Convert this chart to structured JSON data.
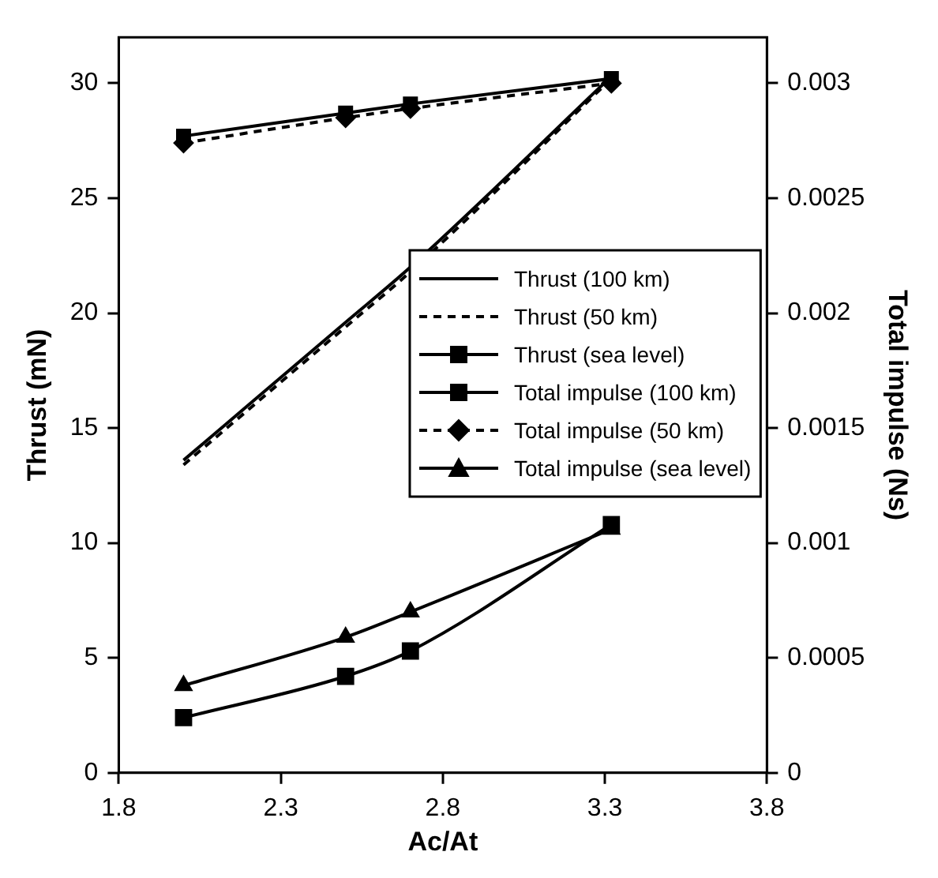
{
  "chart_data": {
    "type": "line",
    "xlabel": "Ac/At",
    "ylabel": "Thrust (mN)",
    "y2label": "Total impulse (Ns)",
    "x": [
      2.0,
      2.5,
      2.7,
      3.32
    ],
    "xlim": [
      1.8,
      3.8
    ],
    "xticks": [
      1.8,
      2.3,
      2.8,
      3.3,
      3.8
    ],
    "ylim": [
      0,
      32
    ],
    "yticks": [
      0,
      5,
      10,
      15,
      20,
      25,
      30
    ],
    "y2lim": [
      0,
      0.0032
    ],
    "y2ticks": [
      0,
      0.0005,
      0.001,
      0.0015,
      0.002,
      0.0025,
      0.003
    ],
    "grid": false,
    "legend": "right",
    "series": [
      {
        "name": "Thrust (100 km)",
        "color": "#000000",
        "values": [
          13.6,
          19.6,
          22.0,
          30.3
        ],
        "marker": "none",
        "line_style": "solid"
      },
      {
        "name": "Thrust (50 km)",
        "color": "#000000",
        "values": [
          13.4,
          19.4,
          21.8,
          30.2
        ],
        "marker": "none",
        "line_style": "dashed"
      },
      {
        "name": "Thrust (sea level)",
        "color": "#000000",
        "values": [
          2.4,
          4.2,
          5.3,
          10.8
        ],
        "marker": "square",
        "line_style": "solid"
      },
      {
        "name": "Total impulse (100 km)",
        "color": "#000000",
        "values": [
          0.00277,
          0.00287,
          0.00291,
          0.00302
        ],
        "marker": "square",
        "line_style": "solid",
        "axis": "y2"
      },
      {
        "name": "Total impulse (50 km)",
        "color": "#000000",
        "values": [
          0.00274,
          0.00285,
          0.00289,
          0.003
        ],
        "marker": "diamond",
        "line_style": "dashed",
        "axis": "y2"
      },
      {
        "name": "Total impulse (sea level)",
        "color": "#000000",
        "values": [
          0.00038,
          0.00059,
          0.0007,
          0.00106
        ],
        "marker": "triangle",
        "line_style": "solid",
        "axis": "y2"
      }
    ]
  }
}
